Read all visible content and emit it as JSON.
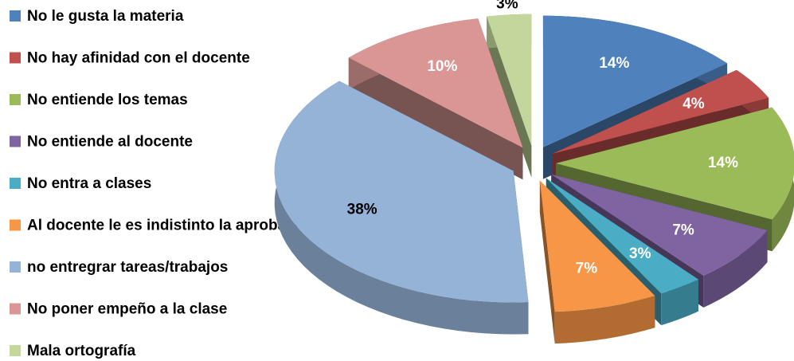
{
  "chart_data": {
    "type": "pie",
    "categories": [
      "No le gusta la materia",
      "No hay afinidad con el docente",
      "No entiende los temas",
      "No entiende al docente",
      "No entra a clases",
      "Al docente le es indistinto la aprobación",
      "no entregrar tareas/trabajos",
      "No poner empeño a la clase",
      "Mala ortografía"
    ],
    "values": [
      14,
      4,
      14,
      7,
      3,
      7,
      38,
      10,
      3
    ],
    "value_labels": [
      "14%",
      "4%",
      "14%",
      "7%",
      "3%",
      "7%",
      "38%",
      "10%",
      "3%"
    ],
    "colors": [
      "#4f81bd",
      "#c0504d",
      "#9bbb59",
      "#8064a2",
      "#4bacc6",
      "#f79646",
      "#95b3d7",
      "#d99694",
      "#c3d69b"
    ],
    "legend": "left"
  }
}
